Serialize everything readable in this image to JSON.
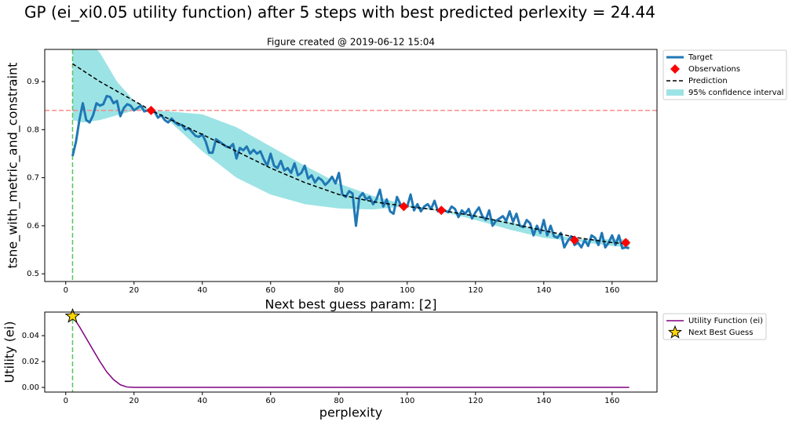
{
  "title": "GP (ei_xi0.05 utility function) after 5 steps with best predicted perlexity = 24.44",
  "chart_data": [
    {
      "type": "line",
      "title": "Figure created @ 2019-06-12 15:04",
      "y_label": "tsne_with_metric_and_constraint",
      "xlim": [
        -6.15,
        173.15
      ],
      "ylim": [
        0.484,
        0.967
      ],
      "xticks": [
        0,
        20,
        40,
        60,
        80,
        100,
        120,
        140,
        160
      ],
      "yticks": [
        0.5,
        0.6,
        0.7,
        0.8,
        0.9
      ],
      "series": [
        {
          "name": "Target",
          "color": "#1f77b4",
          "style": "line",
          "x": [
            2,
            3,
            4,
            5,
            6,
            7,
            8,
            9,
            10,
            11,
            12,
            13,
            14,
            15,
            16,
            17,
            18,
            19,
            20,
            21,
            22,
            23,
            24,
            25,
            26,
            27,
            28,
            29,
            30,
            31,
            32,
            33,
            34,
            35,
            36,
            37,
            38,
            39,
            40,
            41,
            42,
            43,
            44,
            45,
            46,
            47,
            48,
            49,
            50,
            51,
            52,
            53,
            54,
            55,
            56,
            57,
            58,
            59,
            60,
            61,
            62,
            63,
            64,
            65,
            66,
            67,
            68,
            69,
            70,
            71,
            72,
            73,
            74,
            75,
            76,
            77,
            78,
            79,
            80,
            81,
            82,
            83,
            84,
            85,
            86,
            87,
            88,
            89,
            90,
            91,
            92,
            93,
            94,
            95,
            96,
            97,
            98,
            99,
            100,
            101,
            102,
            103,
            104,
            105,
            106,
            107,
            108,
            109,
            110,
            111,
            112,
            113,
            114,
            115,
            116,
            117,
            118,
            119,
            120,
            121,
            122,
            123,
            124,
            125,
            126,
            127,
            128,
            129,
            130,
            131,
            132,
            133,
            134,
            135,
            136,
            137,
            138,
            139,
            140,
            141,
            142,
            143,
            144,
            145,
            146,
            147,
            148,
            149,
            150,
            151,
            152,
            153,
            154,
            155,
            156,
            157,
            158,
            159,
            160,
            161,
            162,
            163,
            164,
            165
          ],
          "values": [
            0.745,
            0.775,
            0.82,
            0.855,
            0.82,
            0.815,
            0.83,
            0.855,
            0.85,
            0.853,
            0.87,
            0.868,
            0.855,
            0.86,
            0.828,
            0.845,
            0.853,
            0.85,
            0.84,
            0.845,
            0.85,
            0.838,
            0.84,
            0.835,
            0.838,
            0.825,
            0.83,
            0.82,
            0.815,
            0.823,
            0.815,
            0.81,
            0.81,
            0.8,
            0.803,
            0.795,
            0.787,
            0.785,
            0.79,
            0.775,
            0.752,
            0.752,
            0.78,
            0.775,
            0.77,
            0.765,
            0.763,
            0.77,
            0.74,
            0.762,
            0.757,
            0.765,
            0.75,
            0.758,
            0.75,
            0.755,
            0.738,
            0.725,
            0.75,
            0.725,
            0.72,
            0.735,
            0.715,
            0.72,
            0.71,
            0.73,
            0.705,
            0.71,
            0.725,
            0.698,
            0.705,
            0.69,
            0.7,
            0.695,
            0.685,
            0.692,
            0.702,
            0.688,
            0.71,
            0.665,
            0.66,
            0.672,
            0.667,
            0.6,
            0.66,
            0.668,
            0.655,
            0.66,
            0.645,
            0.655,
            0.675,
            0.64,
            0.655,
            0.63,
            0.625,
            0.66,
            0.645,
            0.64,
            0.64,
            0.665,
            0.632,
            0.645,
            0.63,
            0.64,
            0.645,
            0.635,
            0.652,
            0.63,
            0.637,
            0.632,
            0.628,
            0.64,
            0.635,
            0.618,
            0.632,
            0.625,
            0.635,
            0.615,
            0.628,
            0.638,
            0.62,
            0.612,
            0.632,
            0.6,
            0.61,
            0.615,
            0.62,
            0.61,
            0.63,
            0.608,
            0.625,
            0.6,
            0.597,
            0.612,
            0.605,
            0.58,
            0.6,
            0.585,
            0.612,
            0.58,
            0.6,
            0.578,
            0.575,
            0.585,
            0.555,
            0.568,
            0.578,
            0.56,
            0.565,
            0.555,
            0.57,
            0.558,
            0.58,
            0.575,
            0.56,
            0.585,
            0.555,
            0.565,
            0.58,
            0.56,
            0.58,
            0.553,
            0.555,
            0.553
          ]
        },
        {
          "name": "Observations",
          "color": "#ff0000",
          "style": "diamond",
          "x": [
            25,
            99,
            110,
            149,
            164
          ],
          "values": [
            0.84,
            0.64,
            0.632,
            0.57,
            0.565
          ]
        },
        {
          "name": "Prediction",
          "color": "#000000",
          "style": "dashed",
          "x": [
            2,
            10,
            20,
            25,
            30,
            40,
            50,
            60,
            70,
            80,
            90,
            100,
            110,
            120,
            130,
            140,
            150,
            160,
            165
          ],
          "values": [
            0.937,
            0.9,
            0.86,
            0.84,
            0.823,
            0.79,
            0.755,
            0.72,
            0.69,
            0.665,
            0.65,
            0.64,
            0.632,
            0.62,
            0.605,
            0.59,
            0.575,
            0.565,
            0.562
          ]
        }
      ],
      "band": {
        "name": "95% confidence interval",
        "color": "#9ce3e5",
        "x": [
          2,
          5,
          10,
          15,
          20,
          25,
          30,
          40,
          50,
          60,
          70,
          80,
          90,
          99,
          110,
          120,
          130,
          140,
          149,
          160,
          165
        ],
        "upper": [
          1.02,
          1.0,
          0.96,
          0.9,
          0.86,
          0.84,
          0.838,
          0.832,
          0.805,
          0.765,
          0.725,
          0.688,
          0.662,
          0.645,
          0.632,
          0.622,
          0.608,
          0.59,
          0.572,
          0.572,
          0.572
        ],
        "lower": [
          0.82,
          0.815,
          0.82,
          0.83,
          0.84,
          0.84,
          0.82,
          0.755,
          0.7,
          0.665,
          0.645,
          0.636,
          0.634,
          0.64,
          0.63,
          0.612,
          0.592,
          0.575,
          0.568,
          0.558,
          0.555
        ]
      },
      "hline": {
        "value": 0.84,
        "color": "#ff8080"
      },
      "vline": {
        "value": 2,
        "color": "#5cc35c"
      }
    },
    {
      "type": "line",
      "title": "Next best guess param: [2]",
      "x_label": "perplexity",
      "y_label": "Utility (ei)",
      "xlim": [
        -6.15,
        173.15
      ],
      "ylim": [
        -0.0036,
        0.0582
      ],
      "xticks": [
        0,
        20,
        40,
        60,
        80,
        100,
        120,
        140,
        160
      ],
      "yticks": [
        {
          "value": 0,
          "label": "0.00"
        },
        {
          "value": 0.02,
          "label": "0.02"
        },
        {
          "value": 0.04,
          "label": "0.04"
        }
      ],
      "series": [
        {
          "name": "Utility Function (ei)",
          "color": "#800080",
          "style": "line",
          "x": [
            2,
            4,
            6,
            8,
            10,
            12,
            14,
            16,
            18,
            20,
            165
          ],
          "values": [
            0.055,
            0.047,
            0.038,
            0.029,
            0.02,
            0.012,
            0.006,
            0.002,
            0.0003,
            0,
            0
          ]
        },
        {
          "name": "Next Best Guess",
          "color": "#ffd700",
          "style": "star",
          "x": [
            2
          ],
          "values": [
            0.055
          ]
        }
      ],
      "vline": {
        "value": 2,
        "color": "#5cc35c"
      }
    }
  ]
}
